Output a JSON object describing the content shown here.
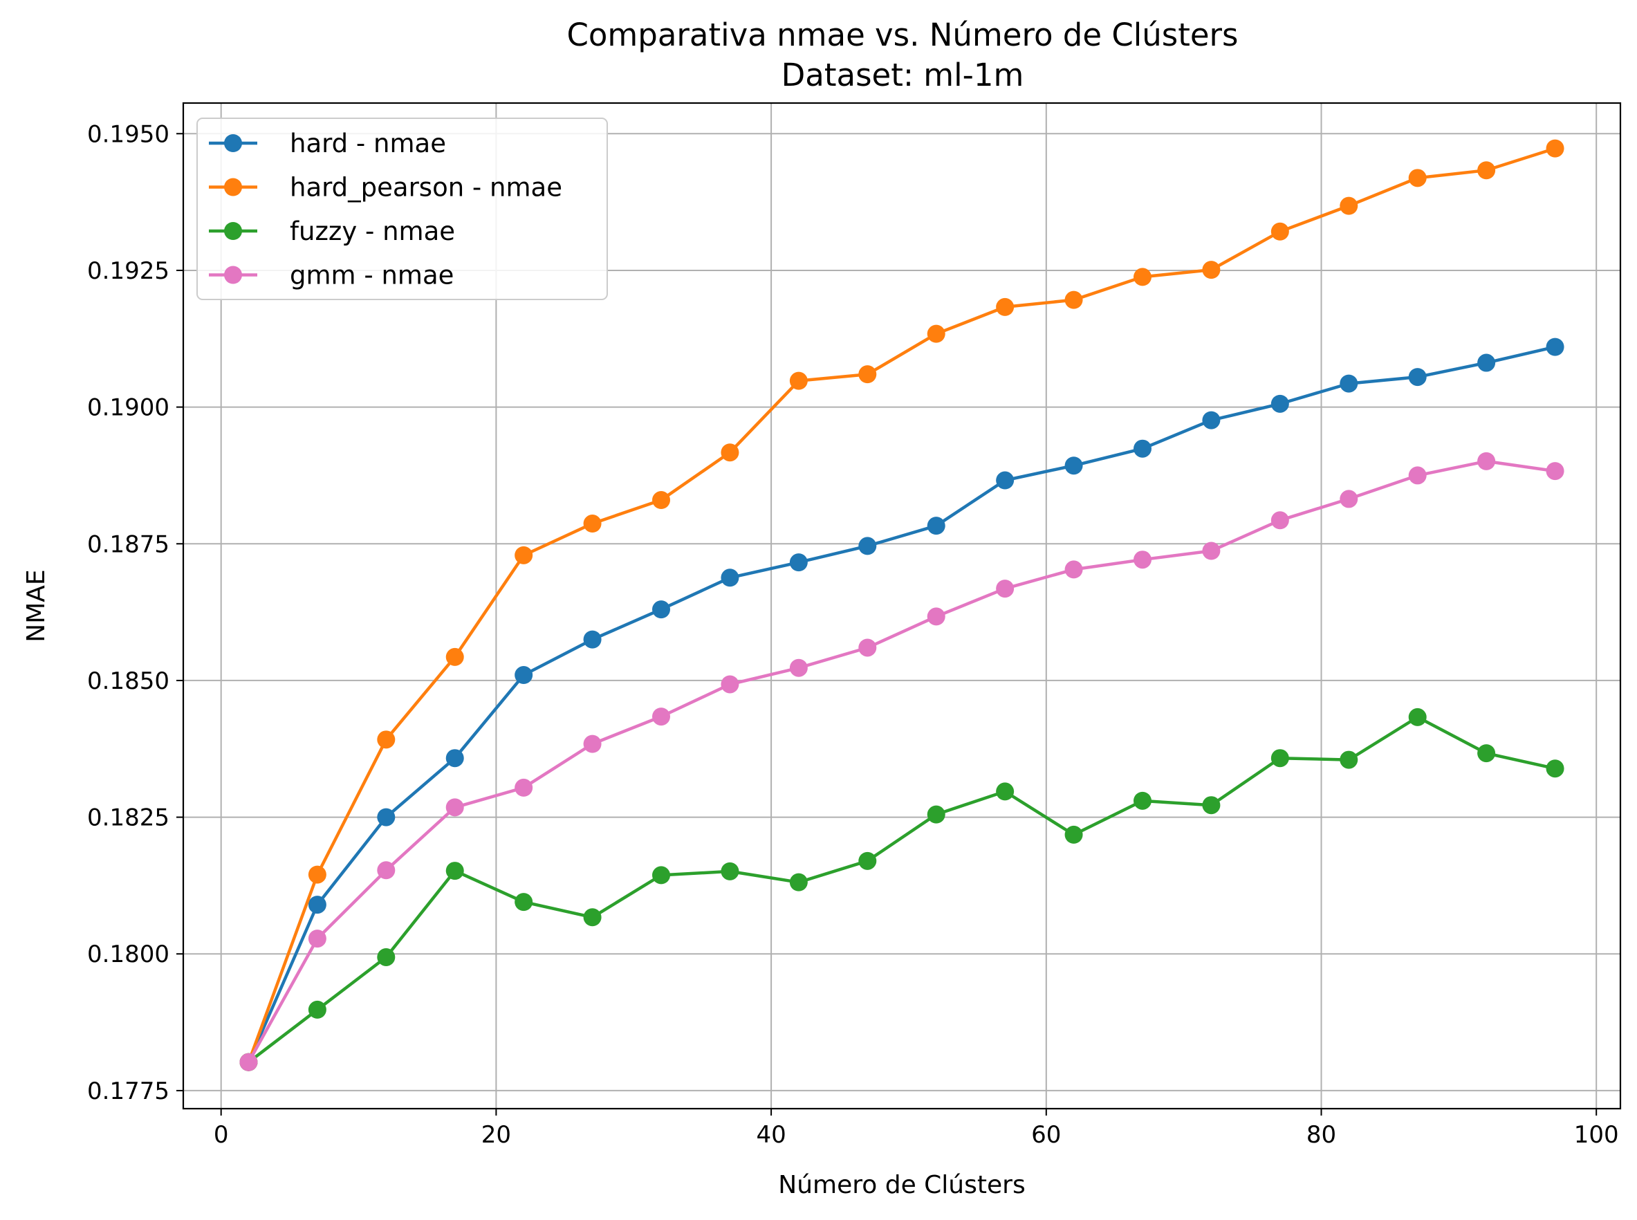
{
  "chart_data": {
    "type": "line",
    "title": "Comparativa nmae vs. Número de Clústers",
    "subtitle": "Dataset: ml-1m",
    "xlabel": "Número de Clústers",
    "ylabel": "NMAE",
    "xlim": [
      -2.75,
      101.75
    ],
    "ylim": [
      0.17717,
      0.19556
    ],
    "xticks": [
      0,
      20,
      40,
      60,
      80,
      100
    ],
    "xtick_labels": [
      "0",
      "20",
      "40",
      "60",
      "80",
      "100"
    ],
    "yticks": [
      0.1775,
      0.18,
      0.1825,
      0.185,
      0.1875,
      0.19,
      0.1925,
      0.195
    ],
    "ytick_labels": [
      "0.1775",
      "0.1800",
      "0.1825",
      "0.1850",
      "0.1875",
      "0.1900",
      "0.1925",
      "0.1950"
    ],
    "grid": true,
    "legend_position": "top-left",
    "x": [
      2,
      7,
      12,
      17,
      22,
      27,
      32,
      37,
      42,
      47,
      52,
      57,
      62,
      67,
      72,
      77,
      82,
      87,
      92,
      97
    ],
    "series": [
      {
        "name": "hard - nmae",
        "color": "#1f77b4",
        "values": [
          0.17802,
          0.1809,
          0.1825,
          0.18358,
          0.1851,
          0.18575,
          0.1863,
          0.18688,
          0.18716,
          0.18746,
          0.18783,
          0.18866,
          0.18893,
          0.18924,
          0.18976,
          0.19006,
          0.19043,
          0.19055,
          0.19081,
          0.1911
        ]
      },
      {
        "name": "hard_pearson - nmae",
        "color": "#ff7f0e",
        "values": [
          0.17802,
          0.18145,
          0.18392,
          0.18543,
          0.18729,
          0.18787,
          0.1883,
          0.18917,
          0.19048,
          0.1906,
          0.19134,
          0.19183,
          0.19196,
          0.19238,
          0.19251,
          0.19321,
          0.19368,
          0.19419,
          0.19433,
          0.19473
        ]
      },
      {
        "name": "fuzzy - nmae",
        "color": "#2ca02c",
        "values": [
          0.17802,
          0.17898,
          0.17994,
          0.18152,
          0.18095,
          0.18067,
          0.18144,
          0.18151,
          0.18131,
          0.1817,
          0.18255,
          0.18297,
          0.18218,
          0.1828,
          0.18272,
          0.18358,
          0.18355,
          0.18433,
          0.18367,
          0.18339
        ]
      },
      {
        "name": "gmm - nmae",
        "color": "#e377c2",
        "values": [
          0.17802,
          0.18028,
          0.18153,
          0.18268,
          0.18304,
          0.18384,
          0.18434,
          0.18493,
          0.18523,
          0.1856,
          0.18617,
          0.18668,
          0.18703,
          0.18721,
          0.18737,
          0.18793,
          0.18832,
          0.18875,
          0.18901,
          0.18883
        ]
      }
    ]
  }
}
